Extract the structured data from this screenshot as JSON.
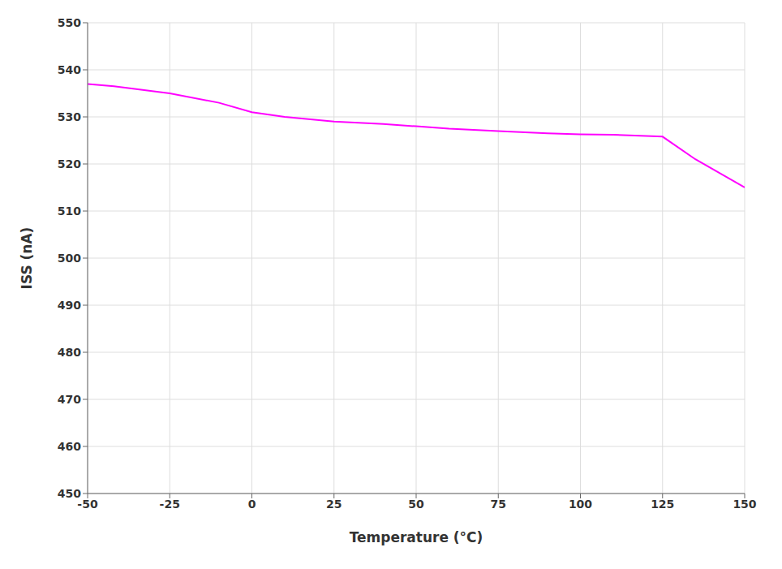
{
  "chart_data": {
    "type": "line",
    "xlabel": "Temperature (°C)",
    "ylabel": "ISS (nA)",
    "x": [
      -50,
      -42,
      -25,
      -10,
      0,
      10,
      25,
      40,
      50,
      60,
      75,
      90,
      100,
      110,
      125,
      135,
      150
    ],
    "values": [
      537,
      536.5,
      535,
      533,
      531,
      530,
      529,
      528.5,
      528,
      527.5,
      527,
      526.5,
      526.3,
      526.2,
      525.8,
      521,
      515
    ],
    "color": "#FF00FF",
    "xlim": [
      -50,
      150
    ],
    "ylim": [
      450,
      550
    ],
    "xticks": [
      -50,
      -25,
      0,
      25,
      50,
      75,
      100,
      125,
      150
    ],
    "yticks": [
      450,
      460,
      470,
      480,
      490,
      500,
      510,
      520,
      530,
      540,
      550
    ],
    "grid": true
  }
}
